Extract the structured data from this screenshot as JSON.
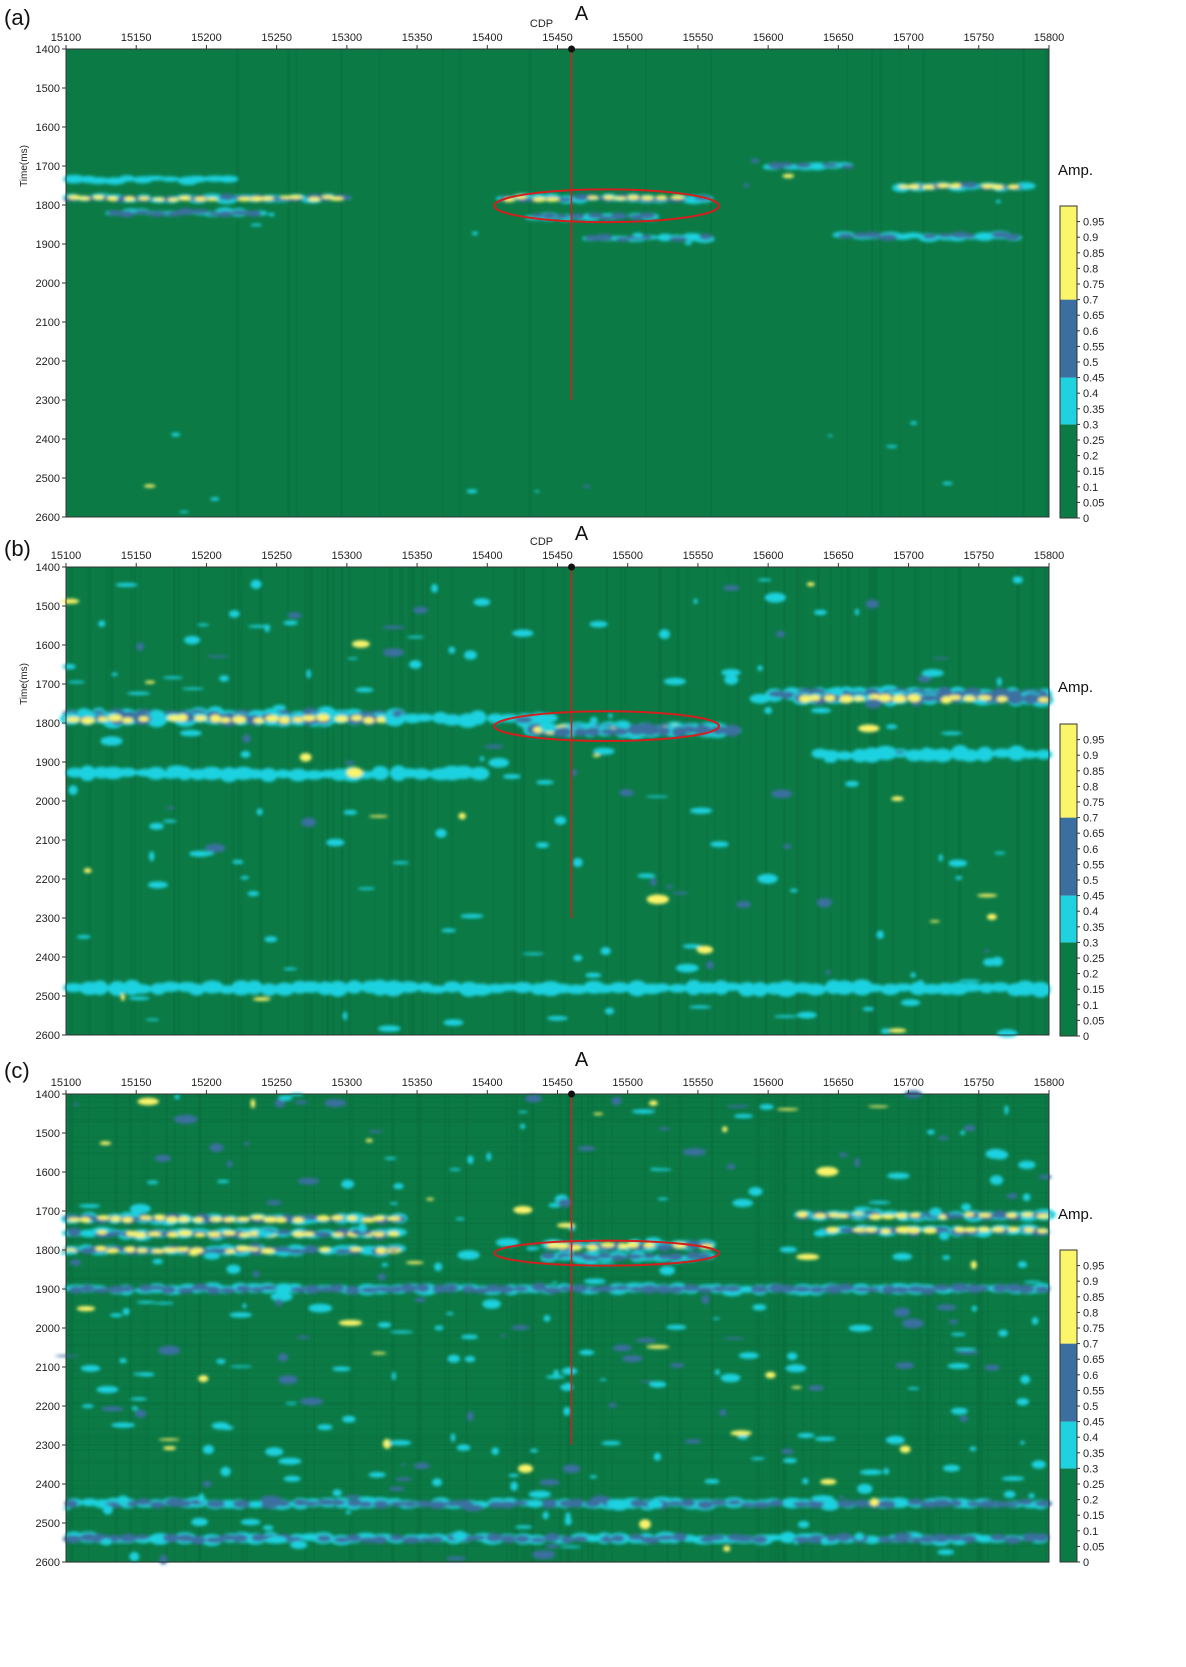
{
  "figure": {
    "panels": [
      {
        "label": "(a)",
        "cdp_label": "CDP",
        "well_label": "A",
        "ylabel": "Time(ms)"
      },
      {
        "label": "(b)",
        "cdp_label": "CDP",
        "well_label": "A",
        "ylabel": "Time(ms)"
      },
      {
        "label": "(c)",
        "cdp_label": "",
        "well_label": "A",
        "ylabel": ""
      }
    ],
    "colorbar": {
      "title": "Amp.",
      "ticks": [
        "0.95",
        "0.9",
        "0.85",
        "0.8",
        "0.75",
        "0.7",
        "0.65",
        "0.6",
        "0.55",
        "0.5",
        "0.45",
        "0.4",
        "0.35",
        "0.3",
        "0.25",
        "0.2",
        "0.15",
        "0.1",
        "0.05",
        "0"
      ],
      "colors": [
        {
          "from": 0.0,
          "to": 0.3,
          "color": "#0b7a45"
        },
        {
          "from": 0.3,
          "to": 0.45,
          "color": "#1fd2e0"
        },
        {
          "from": 0.45,
          "to": 0.7,
          "color": "#3a6fa0"
        },
        {
          "from": 0.7,
          "to": 1.0,
          "color": "#fbf56a"
        }
      ]
    }
  },
  "chart_data": [
    {
      "type": "heatmap",
      "panel": "(a)",
      "xlabel": "CDP",
      "ylabel": "Time(ms)",
      "xlim": [
        15100,
        15800
      ],
      "ylim": [
        1400,
        2600
      ],
      "xticks": [
        15100,
        15150,
        15200,
        15250,
        15300,
        15350,
        15400,
        15450,
        15500,
        15550,
        15600,
        15650,
        15700,
        15750,
        15800
      ],
      "yticks": [
        1400,
        1500,
        1600,
        1700,
        1800,
        1900,
        2000,
        2100,
        2200,
        2300,
        2400,
        2500,
        2600
      ],
      "well": {
        "name": "A",
        "cdp": 15460,
        "t_top": 1400,
        "t_bottom": 2300
      },
      "highlight_ellipse": {
        "cx": 15485,
        "cy": 1802,
        "rx": 80,
        "ry": 42
      },
      "colorbar_ticks": [
        0,
        0.05,
        0.1,
        0.15,
        0.2,
        0.25,
        0.3,
        0.35,
        0.4,
        0.45,
        0.5,
        0.55,
        0.6,
        0.65,
        0.7,
        0.75,
        0.8,
        0.85,
        0.9,
        0.95
      ],
      "anomalies": [
        {
          "x0": 15100,
          "x1": 15300,
          "t": 1783,
          "amp": 0.9
        },
        {
          "x0": 15130,
          "x1": 15240,
          "t": 1820,
          "amp": 0.55
        },
        {
          "x0": 15100,
          "x1": 15220,
          "t": 1735,
          "amp": 0.4
        },
        {
          "x0": 15410,
          "x1": 15560,
          "t": 1783,
          "amp": 0.9
        },
        {
          "x0": 15430,
          "x1": 15520,
          "t": 1830,
          "amp": 0.5
        },
        {
          "x0": 15600,
          "x1": 15660,
          "t": 1700,
          "amp": 0.55
        },
        {
          "x0": 15690,
          "x1": 15790,
          "t": 1752,
          "amp": 0.75
        },
        {
          "x0": 15650,
          "x1": 15780,
          "t": 1880,
          "amp": 0.45
        },
        {
          "x0": 15470,
          "x1": 15560,
          "t": 1885,
          "amp": 0.45
        }
      ]
    },
    {
      "type": "heatmap",
      "panel": "(b)",
      "xlabel": "CDP",
      "ylabel": "Time(ms)",
      "xlim": [
        15100,
        15800
      ],
      "ylim": [
        1400,
        2600
      ],
      "xticks": [
        15100,
        15150,
        15200,
        15250,
        15300,
        15350,
        15400,
        15450,
        15500,
        15550,
        15600,
        15650,
        15700,
        15750,
        15800
      ],
      "yticks": [
        1400,
        1500,
        1600,
        1700,
        1800,
        1900,
        2000,
        2100,
        2200,
        2300,
        2400,
        2500,
        2600
      ],
      "well": {
        "name": "A",
        "cdp": 15460,
        "t_top": 1400,
        "t_bottom": 2300
      },
      "highlight_ellipse": {
        "cx": 15485,
        "cy": 1808,
        "rx": 80,
        "ry": 38
      },
      "colorbar_ticks": [
        0,
        0.05,
        0.1,
        0.15,
        0.2,
        0.25,
        0.3,
        0.35,
        0.4,
        0.45,
        0.5,
        0.55,
        0.6,
        0.65,
        0.7,
        0.75,
        0.8,
        0.85,
        0.9,
        0.95
      ],
      "anomalies": [
        {
          "x0": 15100,
          "x1": 15340,
          "t": 1780,
          "amp": 0.5
        },
        {
          "x0": 15100,
          "x1": 15330,
          "t": 1790,
          "amp": 0.9
        },
        {
          "x0": 15330,
          "x1": 15450,
          "t": 1790,
          "amp": 0.4
        },
        {
          "x0": 15430,
          "x1": 15560,
          "t": 1815,
          "amp": 0.8
        },
        {
          "x0": 15450,
          "x1": 15580,
          "t": 1820,
          "amp": 0.5
        },
        {
          "x0": 15600,
          "x1": 15800,
          "t": 1725,
          "amp": 0.5
        },
        {
          "x0": 15620,
          "x1": 15800,
          "t": 1738,
          "amp": 0.9
        },
        {
          "x0": 15630,
          "x1": 15800,
          "t": 1880,
          "amp": 0.42
        },
        {
          "x0": 15100,
          "x1": 15400,
          "t": 1930,
          "amp": 0.4
        },
        {
          "x0": 15100,
          "x1": 15800,
          "t": 2480,
          "amp": 0.38
        }
      ]
    },
    {
      "type": "heatmap",
      "panel": "(c)",
      "xlabel": "",
      "ylabel": "",
      "xlim": [
        15100,
        15800
      ],
      "ylim": [
        1400,
        2600
      ],
      "xticks": [
        15100,
        15150,
        15200,
        15250,
        15300,
        15350,
        15400,
        15450,
        15500,
        15550,
        15600,
        15650,
        15700,
        15750,
        15800
      ],
      "yticks": [
        1400,
        1500,
        1600,
        1700,
        1800,
        1900,
        2000,
        2100,
        2200,
        2300,
        2400,
        2500,
        2600
      ],
      "well": {
        "name": "A",
        "cdp": 15460,
        "t_top": 1400,
        "t_bottom": 2300
      },
      "highlight_ellipse": {
        "cx": 15485,
        "cy": 1808,
        "rx": 80,
        "ry": 32
      },
      "colorbar_ticks": [
        0,
        0.05,
        0.1,
        0.15,
        0.2,
        0.25,
        0.3,
        0.35,
        0.4,
        0.45,
        0.5,
        0.55,
        0.6,
        0.65,
        0.7,
        0.75,
        0.8,
        0.85,
        0.9,
        0.95
      ],
      "anomalies": [
        {
          "x0": 15100,
          "x1": 15340,
          "t": 1720,
          "amp": 0.85
        },
        {
          "x0": 15100,
          "x1": 15340,
          "t": 1758,
          "amp": 0.9
        },
        {
          "x0": 15100,
          "x1": 15340,
          "t": 1800,
          "amp": 0.85
        },
        {
          "x0": 15440,
          "x1": 15560,
          "t": 1790,
          "amp": 0.85
        },
        {
          "x0": 15440,
          "x1": 15560,
          "t": 1818,
          "amp": 0.6
        },
        {
          "x0": 15620,
          "x1": 15800,
          "t": 1712,
          "amp": 0.9
        },
        {
          "x0": 15640,
          "x1": 15800,
          "t": 1750,
          "amp": 0.9
        },
        {
          "x0": 15100,
          "x1": 15800,
          "t": 1900,
          "amp": 0.45
        },
        {
          "x0": 15100,
          "x1": 15800,
          "t": 2450,
          "amp": 0.45
        },
        {
          "x0": 15100,
          "x1": 15800,
          "t": 2540,
          "amp": 0.45
        }
      ]
    }
  ]
}
